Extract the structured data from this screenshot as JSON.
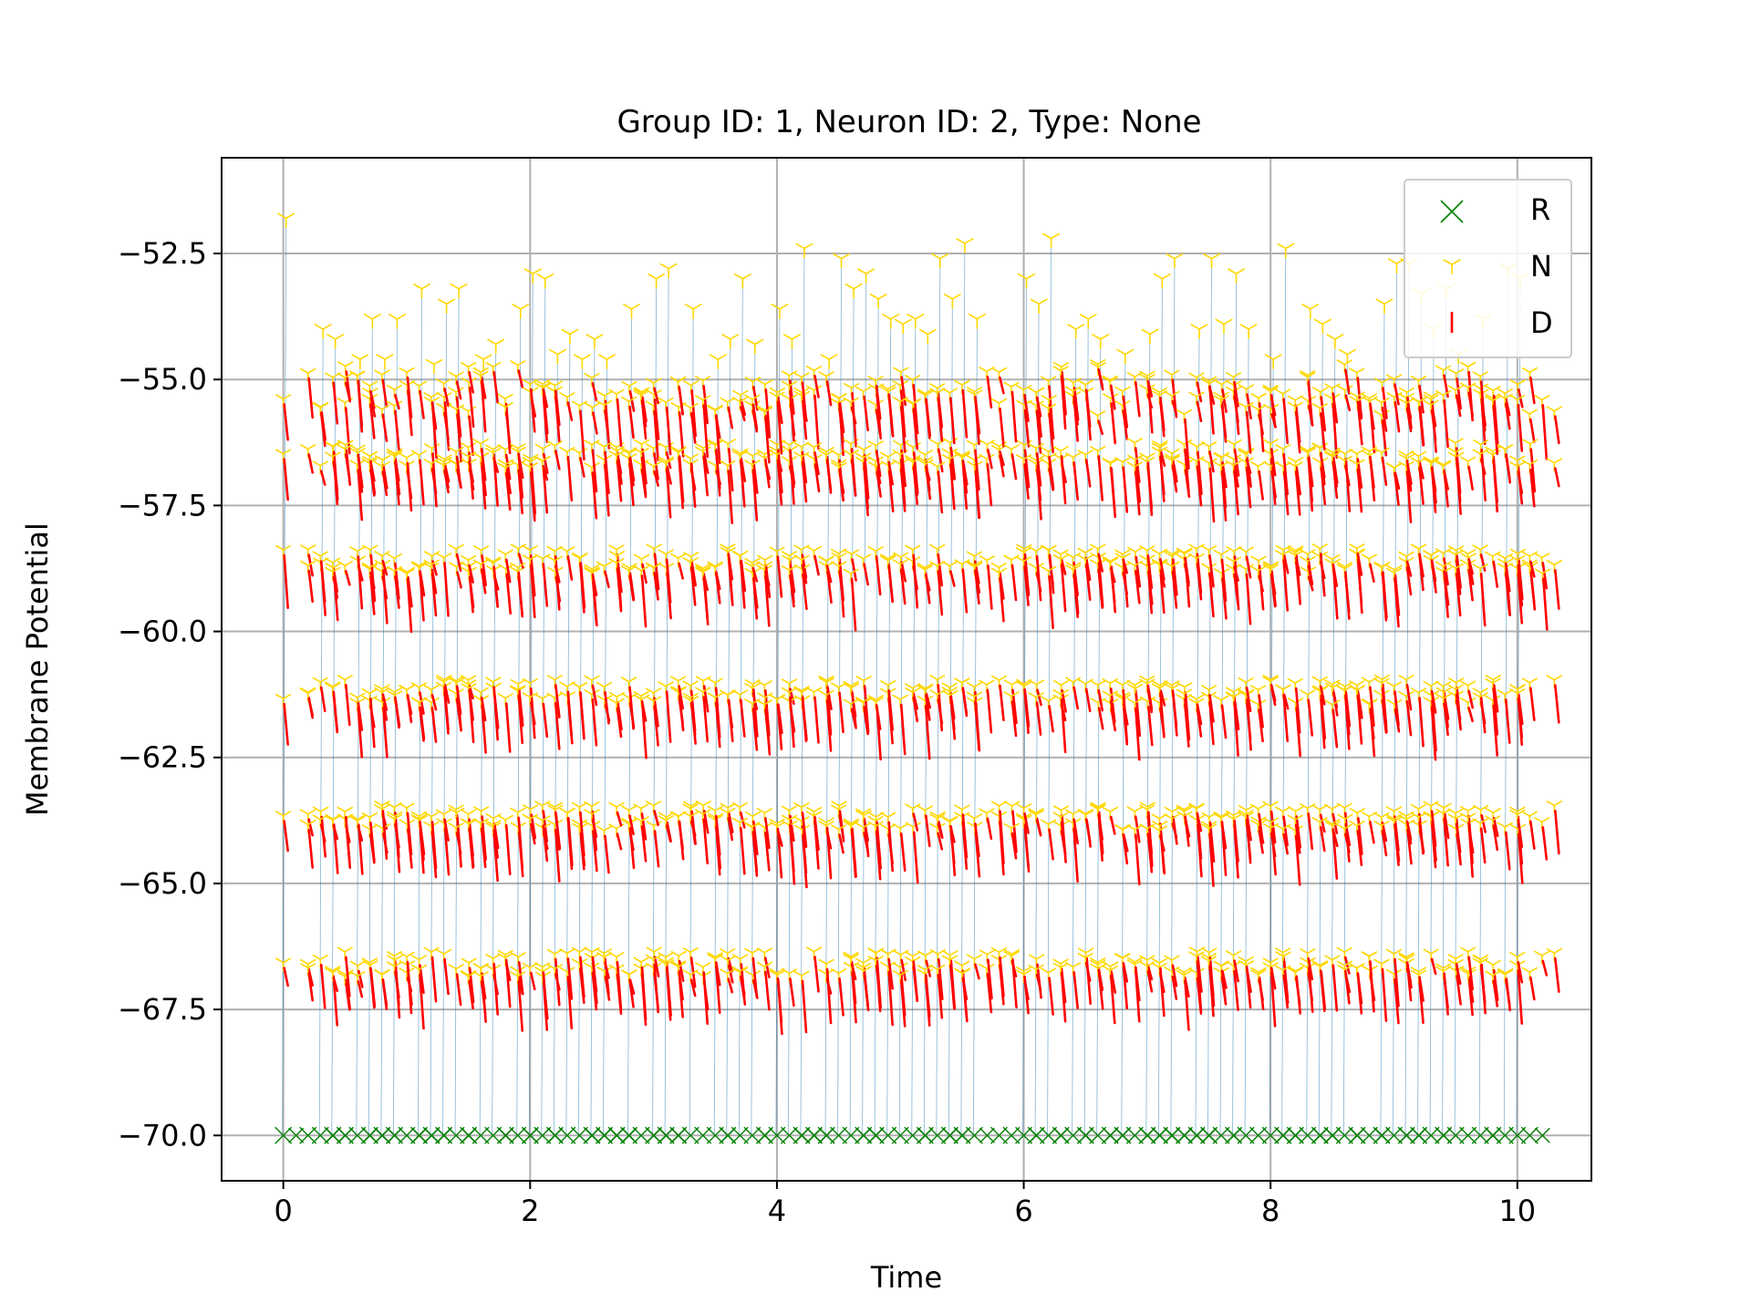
{
  "chart_data": {
    "type": "scatter",
    "title": "Group ID: 1, Neuron ID: 2, Type: None",
    "xlabel": "Time",
    "ylabel": "Membrane Potential",
    "xlim": [
      -0.5,
      10.6
    ],
    "ylim": [
      -70.9,
      -50.6
    ],
    "xticks": [
      0,
      2,
      4,
      6,
      8,
      10
    ],
    "xtick_labels": [
      "0",
      "2",
      "4",
      "6",
      "8",
      "10"
    ],
    "yticks": [
      -70.0,
      -67.5,
      -65.0,
      -62.5,
      -60.0,
      -57.5,
      -55.0,
      -52.5
    ],
    "ytick_labels": [
      "−70.0",
      "−67.5",
      "−65.0",
      "−62.5",
      "−60.0",
      "−57.5",
      "−55.0",
      "−52.5"
    ],
    "grid": true,
    "legend_position": "top-right",
    "colors": {
      "trace": "#1f77b4",
      "R": "#008000",
      "N": "#ffd700",
      "D": "#ff0000"
    },
    "series": [
      {
        "name": "R",
        "marker": "x",
        "color": "#008000",
        "x": [
          0.0,
          0.2,
          0.3,
          0.4,
          0.5,
          0.6,
          0.7,
          0.8,
          0.9,
          1.0,
          1.1,
          1.2,
          1.3,
          1.4,
          1.5,
          1.6,
          1.7,
          1.8,
          1.9,
          2.0,
          2.1,
          2.2,
          2.3,
          2.4,
          2.5,
          2.6,
          2.7,
          2.8,
          2.9,
          3.0,
          3.1,
          3.2,
          3.3,
          3.4,
          3.5,
          3.6,
          3.7,
          3.8,
          3.9,
          4.0,
          4.1,
          4.2,
          4.3,
          4.4,
          4.5,
          4.6,
          4.7,
          4.8,
          4.9,
          5.0,
          5.1,
          5.2,
          5.3,
          5.4,
          5.5,
          5.6,
          5.8,
          5.9,
          6.0,
          6.1,
          6.2,
          6.3,
          6.4,
          6.5,
          6.6,
          6.7,
          6.8,
          6.9,
          7.0,
          7.1,
          7.2,
          7.3,
          7.4,
          7.5,
          7.6,
          7.7,
          7.8,
          7.9,
          8.0,
          8.1,
          8.2,
          8.3,
          8.4,
          8.5,
          8.6,
          8.7,
          8.8,
          8.9,
          9.0,
          9.1,
          9.2,
          9.3,
          9.4,
          9.5,
          9.6,
          9.7,
          9.8,
          9.9,
          10.0,
          10.1
        ],
        "y": -70.0
      },
      {
        "name": "N",
        "marker": "tri_down",
        "color": "#ffd700",
        "peaks": [
          [
            0.0,
            -51.8
          ],
          [
            0.3,
            -54.0
          ],
          [
            0.4,
            -54.2
          ],
          [
            0.6,
            -54.6
          ],
          [
            0.7,
            -53.8
          ],
          [
            0.8,
            -54.6
          ],
          [
            0.9,
            -53.8
          ],
          [
            1.1,
            -53.2
          ],
          [
            1.2,
            -54.7
          ],
          [
            1.3,
            -53.5
          ],
          [
            1.4,
            -53.2
          ],
          [
            1.6,
            -54.6
          ],
          [
            1.7,
            -54.3
          ],
          [
            1.9,
            -53.6
          ],
          [
            2.0,
            -52.9
          ],
          [
            2.1,
            -53.0
          ],
          [
            2.2,
            -54.5
          ],
          [
            2.3,
            -54.1
          ],
          [
            2.4,
            -54.6
          ],
          [
            2.5,
            -54.2
          ],
          [
            2.6,
            -54.6
          ],
          [
            2.8,
            -53.6
          ],
          [
            3.0,
            -53.0
          ],
          [
            3.1,
            -52.8
          ],
          [
            3.3,
            -53.6
          ],
          [
            3.5,
            -54.6
          ],
          [
            3.6,
            -54.2
          ],
          [
            3.7,
            -53.0
          ],
          [
            3.8,
            -54.3
          ],
          [
            4.0,
            -53.6
          ],
          [
            4.1,
            -54.2
          ],
          [
            4.2,
            -52.4
          ],
          [
            4.4,
            -54.6
          ],
          [
            4.5,
            -52.6
          ],
          [
            4.6,
            -53.2
          ],
          [
            4.7,
            -52.9
          ],
          [
            4.8,
            -53.4
          ],
          [
            4.9,
            -53.8
          ],
          [
            5.0,
            -53.9
          ],
          [
            5.1,
            -53.8
          ],
          [
            5.2,
            -54.1
          ],
          [
            5.3,
            -52.6
          ],
          [
            5.4,
            -53.4
          ],
          [
            5.5,
            -52.3
          ],
          [
            5.6,
            -53.8
          ],
          [
            6.0,
            -53.0
          ],
          [
            6.1,
            -53.5
          ],
          [
            6.2,
            -52.2
          ],
          [
            6.4,
            -54.0
          ],
          [
            6.5,
            -53.8
          ],
          [
            6.6,
            -54.2
          ],
          [
            6.8,
            -54.5
          ],
          [
            7.0,
            -54.1
          ],
          [
            7.1,
            -53.0
          ],
          [
            7.2,
            -52.6
          ],
          [
            7.4,
            -54.0
          ],
          [
            7.5,
            -52.6
          ],
          [
            7.6,
            -53.9
          ],
          [
            7.7,
            -52.9
          ],
          [
            7.8,
            -54.0
          ],
          [
            8.0,
            -54.6
          ],
          [
            8.1,
            -52.4
          ],
          [
            8.3,
            -53.6
          ],
          [
            8.4,
            -53.9
          ],
          [
            8.5,
            -54.2
          ],
          [
            8.6,
            -54.5
          ],
          [
            8.9,
            -53.5
          ],
          [
            9.0,
            -52.7
          ],
          [
            9.1,
            -52.7
          ],
          [
            9.2,
            -53.3
          ],
          [
            9.3,
            -54.0
          ],
          [
            9.4,
            -53.2
          ],
          [
            9.5,
            -54.5
          ],
          [
            9.7,
            -53.8
          ],
          [
            9.9,
            -52.8
          ],
          [
            10.0,
            -53.0
          ]
        ],
        "levels": [
          -66.6,
          -63.7,
          -61.2,
          -58.6,
          -56.5,
          -55.2
        ]
      },
      {
        "name": "D",
        "marker": "vline",
        "color": "#ff0000",
        "note": ""
      }
    ]
  },
  "legend": {
    "items": [
      {
        "label": "R",
        "marker": "x",
        "color": "#008000"
      },
      {
        "label": "N",
        "marker": "tri_down",
        "color": "#ffd700"
      },
      {
        "label": "D",
        "marker": "vline",
        "color": "#ff0000"
      }
    ]
  }
}
